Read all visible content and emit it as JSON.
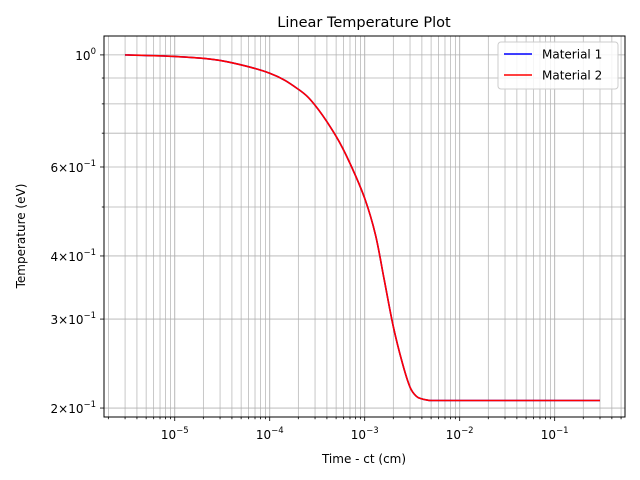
{
  "chart_data": {
    "type": "line",
    "title": "Linear Temperature Plot",
    "xlabel": "Time - ct (cm)",
    "ylabel": "Temperature (eV)",
    "xscale": "log",
    "yscale": "log",
    "xlim": [
      1.8e-06,
      0.55
    ],
    "ylim": [
      0.192,
      1.09
    ],
    "x_ticks": [
      {
        "value": 1e-05,
        "base": "10",
        "exp": "−5"
      },
      {
        "value": 0.0001,
        "base": "10",
        "exp": "−4"
      },
      {
        "value": 0.001,
        "base": "10",
        "exp": "−3"
      },
      {
        "value": 0.01,
        "base": "10",
        "exp": "−2"
      },
      {
        "value": 0.1,
        "base": "10",
        "exp": "−1"
      }
    ],
    "y_ticks": [
      {
        "value": 1.0,
        "base": "10",
        "exp": "0"
      },
      {
        "value": 0.6,
        "base": "6×10",
        "exp": "−1"
      },
      {
        "value": 0.4,
        "base": "4×10",
        "exp": "−1"
      },
      {
        "value": 0.3,
        "base": "3×10",
        "exp": "−1"
      },
      {
        "value": 0.2,
        "base": "2×10",
        "exp": "−1"
      }
    ],
    "grid": true,
    "legend_position": "top-right",
    "series": [
      {
        "name": "Material 1",
        "color": "#0000ff",
        "x": [
          3e-06,
          1e-05,
          3e-05,
          0.0001,
          0.0002,
          0.0003,
          0.0005,
          0.0007,
          0.001,
          0.0013,
          0.0016,
          0.002,
          0.0025,
          0.003,
          0.0035,
          0.004,
          0.0045,
          0.005,
          0.007,
          0.01,
          0.03,
          0.1,
          0.3
        ],
        "y": [
          1.0,
          0.993,
          0.975,
          0.92,
          0.855,
          0.795,
          0.69,
          0.61,
          0.52,
          0.44,
          0.36,
          0.29,
          0.245,
          0.22,
          0.211,
          0.2085,
          0.2075,
          0.207,
          0.207,
          0.207,
          0.207,
          0.207,
          0.207
        ]
      },
      {
        "name": "Material 2",
        "color": "#ff0000",
        "x": [
          3e-06,
          1e-05,
          3e-05,
          0.0001,
          0.0002,
          0.0003,
          0.0005,
          0.0007,
          0.001,
          0.0013,
          0.0016,
          0.002,
          0.0025,
          0.003,
          0.0035,
          0.004,
          0.0045,
          0.005,
          0.007,
          0.01,
          0.03,
          0.1,
          0.3
        ],
        "y": [
          1.0,
          0.993,
          0.975,
          0.92,
          0.855,
          0.795,
          0.69,
          0.61,
          0.52,
          0.44,
          0.36,
          0.29,
          0.245,
          0.22,
          0.211,
          0.2085,
          0.2075,
          0.207,
          0.207,
          0.207,
          0.207,
          0.207,
          0.207
        ]
      }
    ]
  }
}
